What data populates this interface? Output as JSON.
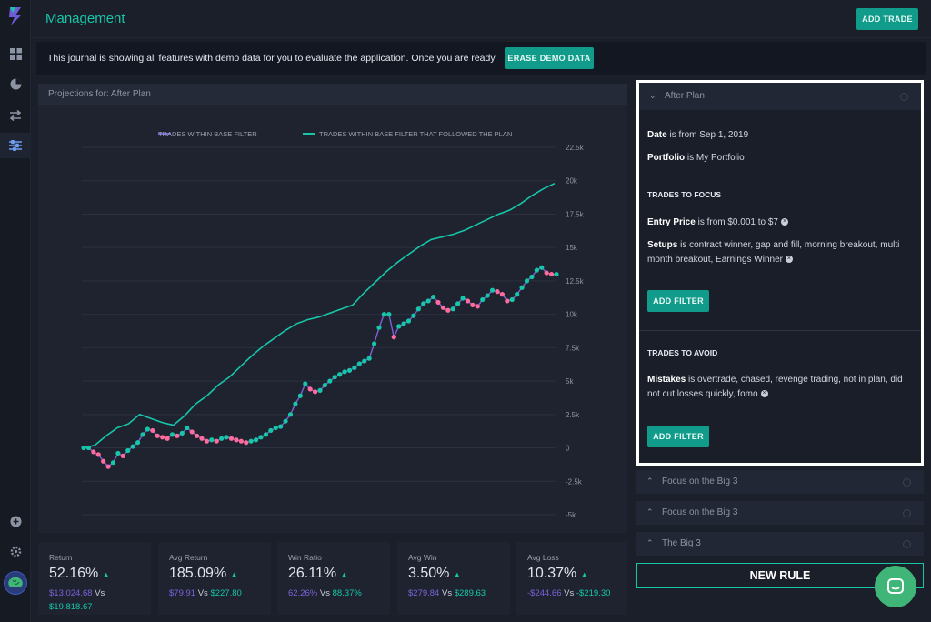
{
  "app": {
    "title": "Management",
    "add_trade_label": "ADD TRADE"
  },
  "banner": {
    "text": "This journal is showing all features with demo data for you to evaluate the application. Once you are ready",
    "erase_label": "ERASE DEMO DATA"
  },
  "chart_panel": {
    "header": "Projections for: After Plan"
  },
  "chart_data": {
    "type": "line",
    "legend_position": "top",
    "y_ticks": [
      "22.5k",
      "20k",
      "17.5k",
      "15k",
      "12.5k",
      "10k",
      "7.5k",
      "5k",
      "2.5k",
      "0",
      "-2.5k",
      "-5k"
    ],
    "ylim": [
      -5000,
      22500
    ],
    "grid": true,
    "series": [
      {
        "name": "TRADES WITHIN BASE FILTER",
        "color": "#7a63d9",
        "marker_colors": [
          "#ff6b9a",
          "#16c6a8"
        ],
        "values": [
          0,
          0,
          -300,
          -500,
          -1000,
          -1400,
          -1100,
          -400,
          -600,
          -200,
          100,
          400,
          1000,
          1400,
          1300,
          900,
          800,
          700,
          1000,
          900,
          1100,
          1500,
          1200,
          900,
          700,
          500,
          600,
          500,
          700,
          800,
          700,
          600,
          500,
          400,
          500,
          600,
          800,
          1000,
          1300,
          1500,
          1600,
          2000,
          2500,
          3300,
          3900,
          4800,
          4400,
          4200,
          4300,
          4700,
          5000,
          5300,
          5500,
          5700,
          5800,
          6000,
          6300,
          6500,
          6700,
          7800,
          9000,
          10000,
          10000,
          8300,
          9100,
          9300,
          9500,
          9900,
          10400,
          10800,
          11000,
          11300,
          10900,
          10500,
          10300,
          10400,
          10800,
          11200,
          11000,
          10700,
          10600,
          11100,
          11400,
          11800,
          11700,
          11500,
          11000,
          11100,
          11500,
          12000,
          12500,
          12800,
          13300,
          13500,
          13100,
          13000,
          13000
        ]
      },
      {
        "name": "TRADES WITHIN BASE FILTER THAT FOLLOWED THE PLAN",
        "color": "#16c6a8",
        "values": [
          0,
          200,
          900,
          1500,
          1800,
          2500,
          2200,
          1900,
          1700,
          2400,
          3300,
          3900,
          4700,
          5300,
          6100,
          6900,
          7600,
          8200,
          8800,
          9300,
          9600,
          9800,
          10100,
          10400,
          10700,
          11600,
          12400,
          13200,
          13900,
          14500,
          15100,
          15600,
          15800,
          16000,
          16300,
          16700,
          17100,
          17500,
          17800,
          18300,
          18900,
          19400,
          19800
        ]
      }
    ]
  },
  "stats": [
    {
      "label": "Return",
      "value": "52.16%",
      "a": "$13,024.68",
      "vs": "Vs",
      "b": "$19,818.67"
    },
    {
      "label": "Avg Return",
      "value": "185.09%",
      "a": "$79.91",
      "vs": "Vs",
      "b": "$227.80"
    },
    {
      "label": "Win Ratio",
      "value": "26.11%",
      "a": "62.26%",
      "vs": "Vs",
      "b": "88.37%"
    },
    {
      "label": "Avg Win",
      "value": "3.50%",
      "a": "$279.84",
      "vs": "Vs",
      "b": "$289.63"
    },
    {
      "label": "Avg Loss",
      "value": "10.37%",
      "a": "-$244.66",
      "vs": "Vs",
      "b": "-$219.30"
    }
  ],
  "plan": {
    "title": "After Plan",
    "date_key": "Date",
    "date_val": " is from Sep 1, 2019",
    "portfolio_key": "Portfolio",
    "portfolio_val": " is My Portfolio",
    "focus_caption": "TRADES TO FOCUS",
    "entry_key": "Entry Price",
    "entry_val": " is from $0.001 to $7",
    "setups_key": "Setups",
    "setups_val": " is contract winner, gap and fill, morning breakout, multi month breakout, Earnings Winner",
    "add_filter_label": "ADD FILTER",
    "avoid_caption": "TRADES TO AVOID",
    "mistakes_key": "Mistakes",
    "mistakes_val": " is overtrade, chased, revenge trading, not in plan, did not cut losses quickly, fomo",
    "add_filter_label_2": "ADD FILTER"
  },
  "rules": [
    "Focus on the Big 3",
    "Focus on the Big 3",
    "The Big 3"
  ],
  "new_rule_label": "NEW RULE"
}
